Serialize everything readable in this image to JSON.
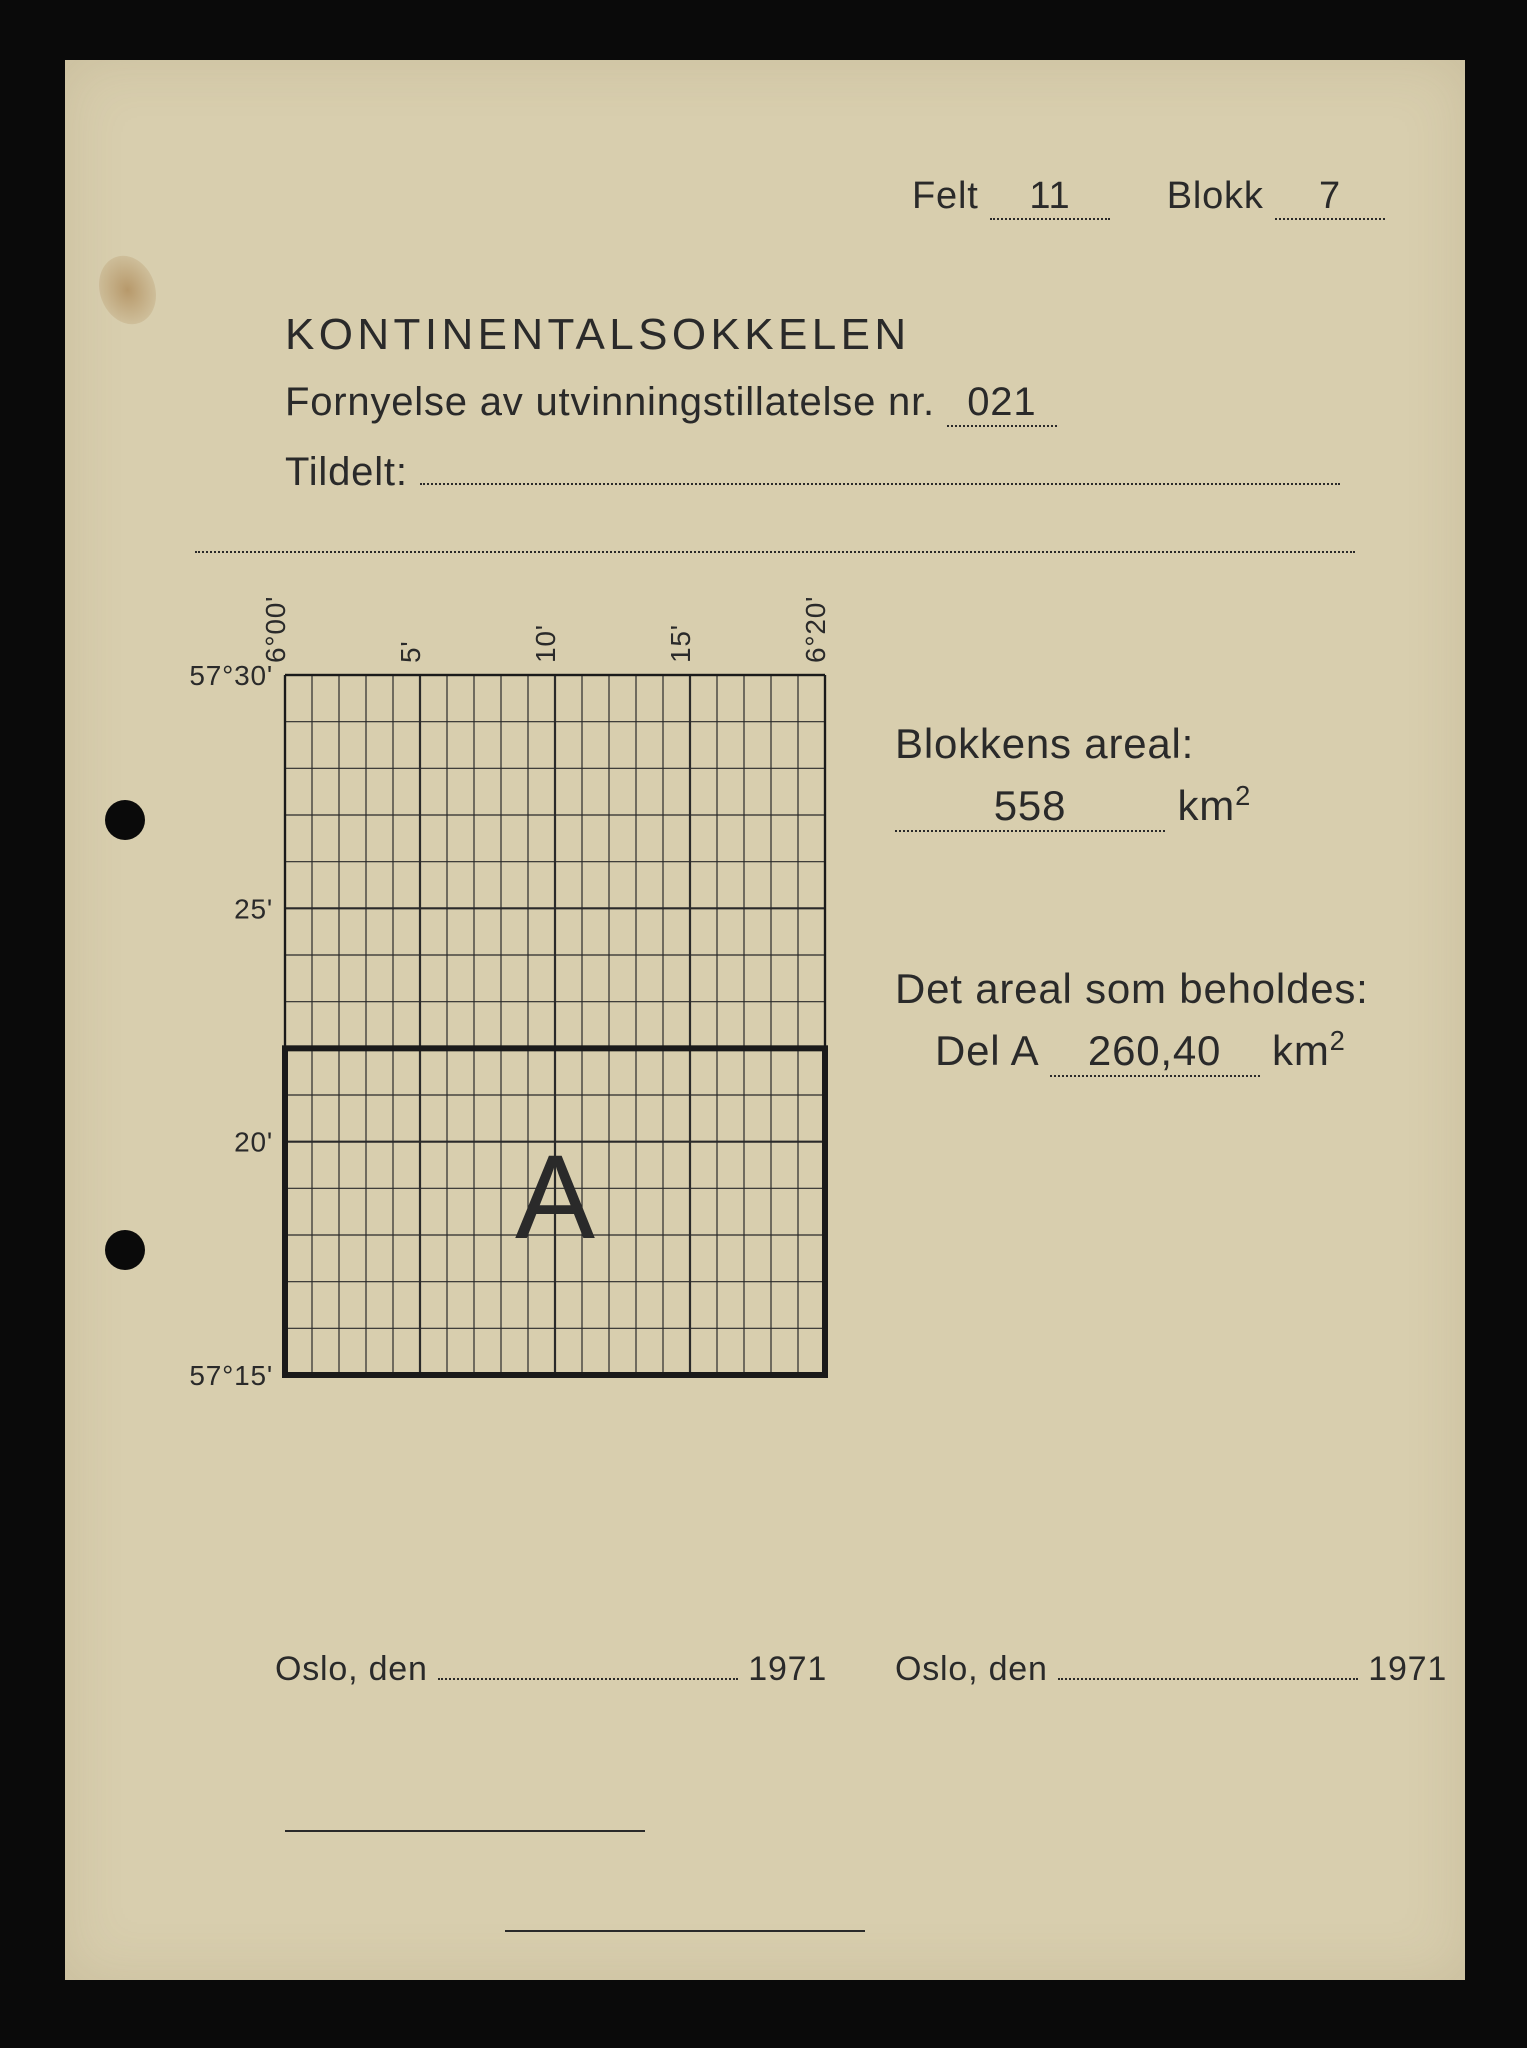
{
  "header": {
    "felt_label": "Felt",
    "felt_value": "11",
    "blokk_label": "Blokk",
    "blokk_value": "7"
  },
  "title": "KONTINENTALSOKKELEN",
  "line2_label": "Fornyelse av utvinningstillatelse nr.",
  "line2_value": "021",
  "line3_label": "Tildelt:",
  "line3_value": "",
  "line4_value": "",
  "areal": {
    "label": "Blokkens areal:",
    "value": "558",
    "unit": "km²"
  },
  "retained": {
    "label": "Det areal som beholdes:",
    "sub_label": "Del A",
    "value": "260,40",
    "unit": "km²"
  },
  "footer": {
    "left_label": "Oslo, den",
    "left_year": "1971",
    "right_label": "Oslo, den",
    "right_year": "1971"
  },
  "grid": {
    "x_labels": [
      "6°00'",
      "5'",
      "10'",
      "15'",
      "6°20'"
    ],
    "y_labels_left": [
      "57°30'",
      "25'",
      "20'",
      "57°15'"
    ],
    "region_label": "A",
    "cols": 20,
    "rows": 15,
    "major_cols": [
      0,
      5,
      10,
      15,
      20
    ],
    "major_rows": [
      0,
      5,
      10,
      15
    ],
    "highlight_row_start": 8,
    "outer_color": "#1a1a1a",
    "grid_color": "#2a2a2a",
    "stroke_thin": 1.2,
    "stroke_major": 2.2,
    "stroke_thick": 6
  },
  "style": {
    "paper_bg": "#d8ceae",
    "text_color": "#2a2a2a",
    "header_fontsize": 38,
    "title_fontsize": 44,
    "body_fontsize": 40,
    "areal_fontsize": 42,
    "region_fontsize": 120,
    "footer_fontsize": 34
  }
}
